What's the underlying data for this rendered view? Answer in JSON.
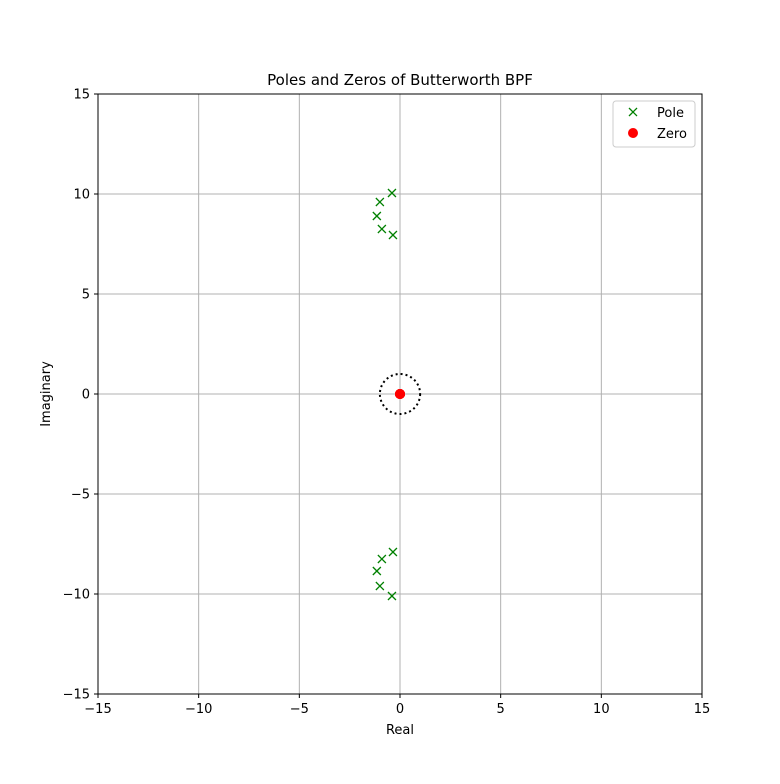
{
  "chart_data": {
    "type": "scatter",
    "title": "Poles and Zeros  of Butterworth BPF",
    "xlabel": "Real",
    "ylabel": "Imaginary",
    "xlim": [
      -15,
      15
    ],
    "ylim": [
      -15,
      15
    ],
    "xticks": [
      -15,
      -10,
      -5,
      0,
      5,
      10,
      15
    ],
    "yticks": [
      -15,
      -10,
      -5,
      0,
      5,
      10,
      15
    ],
    "tick_labels": {
      "x": [
        "−15",
        "−10",
        "−5",
        "0",
        "5",
        "10",
        "15"
      ],
      "y": [
        "−15",
        "−10",
        "−5",
        "0",
        "5",
        "10",
        "15"
      ]
    },
    "grid": true,
    "legend_position": "top-right",
    "unit_circle": {
      "center": [
        0,
        0
      ],
      "radius": 1,
      "style": "dotted",
      "color": "#000000"
    },
    "series": [
      {
        "name": "Pole",
        "marker": "x",
        "color": "#008000",
        "points": [
          [
            -0.4,
            10.05
          ],
          [
            -1.0,
            9.6
          ],
          [
            -1.15,
            8.9
          ],
          [
            -0.9,
            8.25
          ],
          [
            -0.35,
            7.95
          ],
          [
            -0.35,
            -7.9
          ],
          [
            -0.9,
            -8.25
          ],
          [
            -1.15,
            -8.85
          ],
          [
            -1.0,
            -9.6
          ],
          [
            -0.4,
            -10.1
          ]
        ]
      },
      {
        "name": "Zero",
        "marker": "o",
        "color": "#ff0000",
        "points": [
          [
            0,
            0
          ],
          [
            0,
            0
          ],
          [
            0,
            0
          ],
          [
            0,
            0
          ],
          [
            0,
            0
          ]
        ]
      }
    ]
  }
}
